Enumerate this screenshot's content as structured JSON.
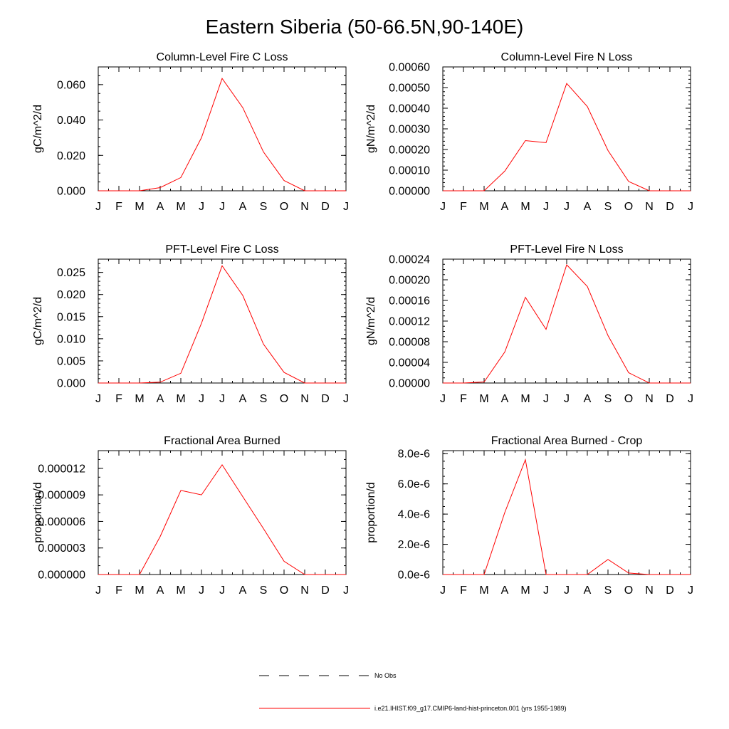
{
  "figure_title": "Eastern Siberia (50-66.5N,90-140E)",
  "legend": {
    "entries": [
      {
        "label": "No Obs",
        "style": "dashed",
        "color": "#000000"
      },
      {
        "label": "i.e21.IHIST.f09_g17.CMIP6-land-hist-princeton.001 (yrs 1955-1989)",
        "style": "solid",
        "color": "#ff0000"
      }
    ]
  },
  "chart_data": [
    {
      "type": "line",
      "title": "Column-Level Fire C Loss",
      "ylabel": "gC/m^2/d",
      "categories": [
        "J",
        "F",
        "M",
        "A",
        "M",
        "J",
        "J",
        "A",
        "S",
        "O",
        "N",
        "D",
        "J"
      ],
      "ylim": [
        0,
        0.07
      ],
      "yticks": [
        0,
        0.02,
        0.04,
        0.06
      ],
      "ytick_labels": [
        "0.000",
        "0.020",
        "0.040",
        "0.060"
      ],
      "minor_step": 0.005,
      "series": [
        {
          "values": [
            0,
            0,
            0,
            0.0018,
            0.0075,
            0.03,
            0.0635,
            0.047,
            0.022,
            0.0058,
            0,
            0,
            0
          ],
          "color": "#ff0000"
        }
      ]
    },
    {
      "type": "line",
      "title": "Column-Level Fire N Loss",
      "ylabel": "gN/m^2/d",
      "categories": [
        "J",
        "F",
        "M",
        "A",
        "M",
        "J",
        "J",
        "A",
        "S",
        "O",
        "N",
        "D",
        "J"
      ],
      "ylim": [
        0,
        0.0006
      ],
      "yticks": [
        0,
        0.0001,
        0.0002,
        0.0003,
        0.0004,
        0.0005,
        0.0006
      ],
      "ytick_labels": [
        "0.00000",
        "0.00010",
        "0.00020",
        "0.00030",
        "0.00040",
        "0.00050",
        "0.00060"
      ],
      "minor_step": 2e-05,
      "series": [
        {
          "values": [
            0,
            0,
            0,
            9.5e-05,
            0.000243,
            0.000233,
            0.00052,
            0.000408,
            0.000195,
            4.5e-05,
            0,
            0,
            0
          ],
          "color": "#ff0000"
        }
      ]
    },
    {
      "type": "line",
      "title": "PFT-Level Fire C Loss",
      "ylabel": "gC/m^2/d",
      "categories": [
        "J",
        "F",
        "M",
        "A",
        "M",
        "J",
        "J",
        "A",
        "S",
        "O",
        "N",
        "D",
        "J"
      ],
      "ylim": [
        0,
        0.028
      ],
      "yticks": [
        0,
        0.005,
        0.01,
        0.015,
        0.02,
        0.025
      ],
      "ytick_labels": [
        "0.000",
        "0.005",
        "0.010",
        "0.015",
        "0.020",
        "0.025"
      ],
      "minor_step": 0.001,
      "series": [
        {
          "values": [
            0,
            0,
            0,
            0.0002,
            0.0022,
            0.0135,
            0.0265,
            0.0198,
            0.0088,
            0.0024,
            0,
            0,
            0
          ],
          "color": "#ff0000"
        }
      ]
    },
    {
      "type": "line",
      "title": "PFT-Level Fire N Loss",
      "ylabel": "gN/m^2/d",
      "categories": [
        "J",
        "F",
        "M",
        "A",
        "M",
        "J",
        "J",
        "A",
        "S",
        "O",
        "N",
        "D",
        "J"
      ],
      "ylim": [
        0,
        0.00024
      ],
      "yticks": [
        0,
        4e-05,
        8e-05,
        0.00012,
        0.00016,
        0.0002,
        0.00024
      ],
      "ytick_labels": [
        "0.00000",
        "0.00004",
        "0.00008",
        "0.00012",
        "0.00016",
        "0.00020",
        "0.00024"
      ],
      "minor_step": 1e-05,
      "series": [
        {
          "values": [
            0,
            0,
            2e-06,
            6e-05,
            0.000166,
            0.000104,
            0.000229,
            0.000187,
            9.2e-05,
            2e-05,
            0,
            0,
            0
          ],
          "color": "#ff0000"
        }
      ]
    },
    {
      "type": "line",
      "title": "Fractional Area Burned",
      "ylabel": "proportion/d",
      "categories": [
        "J",
        "F",
        "M",
        "A",
        "M",
        "J",
        "J",
        "A",
        "S",
        "O",
        "N",
        "D",
        "J"
      ],
      "ylim": [
        0,
        1.4e-05
      ],
      "yticks": [
        0,
        3e-06,
        6e-06,
        9e-06,
        1.2e-05
      ],
      "ytick_labels": [
        "0.000000",
        "0.000003",
        "0.000006",
        "0.000009",
        "0.000012"
      ],
      "minor_step": 1e-06,
      "series": [
        {
          "values": [
            0,
            0,
            0,
            4.3e-06,
            9.5e-06,
            9e-06,
            1.24e-05,
            8.8e-06,
            5.2e-06,
            1.5e-06,
            0,
            0,
            0
          ],
          "color": "#ff0000"
        }
      ]
    },
    {
      "type": "line",
      "title": "Fractional Area Burned - Crop",
      "ylabel": "proportion/d",
      "categories": [
        "J",
        "F",
        "M",
        "A",
        "M",
        "J",
        "J",
        "A",
        "S",
        "O",
        "N",
        "D",
        "J"
      ],
      "ylim": [
        0,
        8.2e-06
      ],
      "yticks": [
        0,
        2e-06,
        4e-06,
        6e-06,
        8e-06
      ],
      "ytick_labels": [
        "0.0e-6",
        "2.0e-6",
        "4.0e-6",
        "6.0e-6",
        "8.0e-6"
      ],
      "minor_step": 5e-07,
      "series": [
        {
          "values": [
            0,
            0,
            0,
            4.1e-06,
            7.6e-06,
            0,
            0,
            0,
            1e-06,
            1e-07,
            0,
            0,
            0
          ],
          "color": "#ff0000"
        }
      ]
    }
  ]
}
